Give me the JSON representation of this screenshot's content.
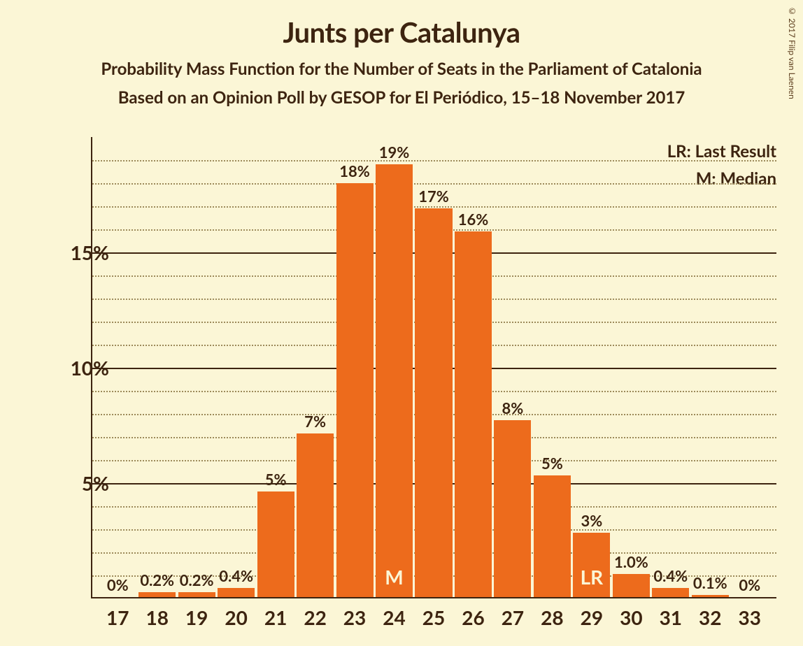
{
  "copyright": "© 2017 Filip van Laenen",
  "title": "Junts per Catalunya",
  "subtitle1": "Probability Mass Function for the Number of Seats in the Parliament of Catalonia",
  "subtitle2": "Based on an Opinion Poll by GESOP for El Periódico, 15–18 November 2017",
  "legend": {
    "lr": "LR: Last Result",
    "m": "M: Median"
  },
  "chart": {
    "type": "bar",
    "bar_color": "#ed6b1c",
    "background_color": "#fbf6d6",
    "axis_color": "#3d2410",
    "grid_major_color": "#3d2410",
    "grid_minor_color": "#9c8a5a",
    "text_color": "#3d2410",
    "marker_text_color": "#fbf6d6",
    "title_fontsize": 40,
    "subtitle_fontsize": 24,
    "tick_fontsize": 28,
    "bar_label_fontsize": 22,
    "legend_fontsize": 24,
    "ylim": [
      0,
      20
    ],
    "ymajor": [
      5,
      10,
      15
    ],
    "yminor_step": 1,
    "categories": [
      17,
      18,
      19,
      20,
      21,
      22,
      23,
      24,
      25,
      26,
      27,
      28,
      29,
      30,
      31,
      32,
      33
    ],
    "values": [
      0,
      0.2,
      0.2,
      0.4,
      4.6,
      7.1,
      18.0,
      18.8,
      16.9,
      15.9,
      7.7,
      5.3,
      2.8,
      1.0,
      0.4,
      0.1,
      0
    ],
    "labels": [
      "0%",
      "0.2%",
      "0.2%",
      "0.4%",
      "5%",
      "7%",
      "18%",
      "19%",
      "17%",
      "16%",
      "8%",
      "5%",
      "3%",
      "1.0%",
      "0.4%",
      "0.1%",
      "0%"
    ],
    "markers": {
      "24": "M",
      "29": "LR"
    },
    "bar_width_ratio": 0.94
  }
}
